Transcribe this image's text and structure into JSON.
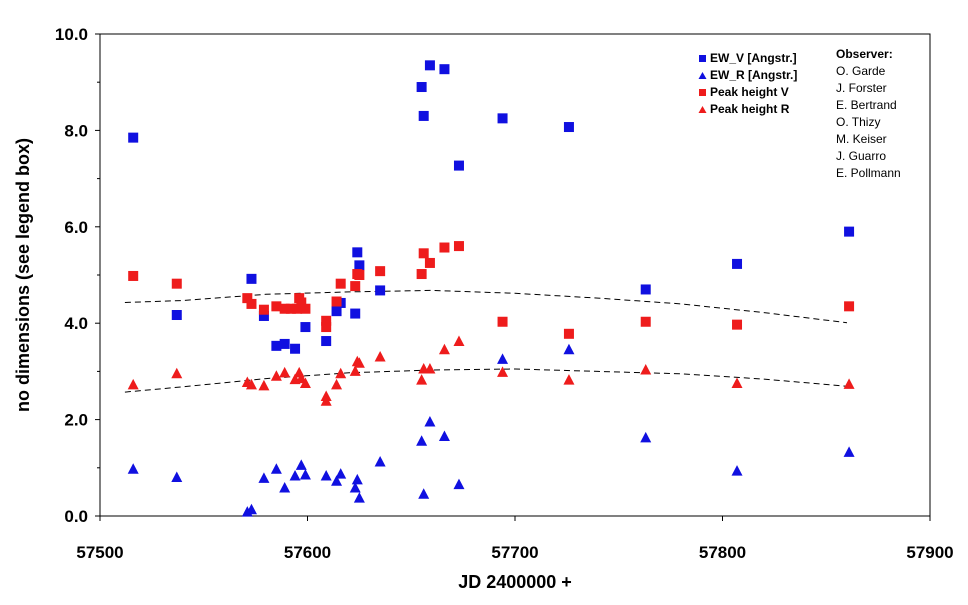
{
  "chart_data": {
    "type": "scatter",
    "xlabel": "JD 2400000 +",
    "ylabel": "no dimensions (see legend box)",
    "xlim": [
      57500,
      57900
    ],
    "ylim": [
      0,
      10
    ],
    "x_ticks": [
      57500,
      57600,
      57700,
      57800,
      57900
    ],
    "y_ticks": [
      0,
      2,
      4,
      6,
      8,
      10
    ],
    "x_tick_labels": [
      "57500",
      "57600",
      "57700",
      "57800",
      "57900"
    ],
    "y_tick_labels": [
      "0.0",
      "2.0",
      "4.0",
      "6.0",
      "8.0",
      "10.0"
    ],
    "grid": false,
    "legend_position": "top-right",
    "series": [
      {
        "name": "EW_V [Angstr.]",
        "marker": "square",
        "color": "#1010e0",
        "points": [
          [
            57516,
            7.85
          ],
          [
            57537,
            4.17
          ],
          [
            57573,
            4.92
          ],
          [
            57579,
            4.15
          ],
          [
            57585,
            3.53
          ],
          [
            57589,
            3.57
          ],
          [
            57594,
            3.47
          ],
          [
            57599,
            3.92
          ],
          [
            57609,
            3.63
          ],
          [
            57614,
            4.25
          ],
          [
            57616,
            4.42
          ],
          [
            57623,
            4.2
          ],
          [
            57624,
            5.47
          ],
          [
            57625,
            5.2
          ],
          [
            57635,
            4.68
          ],
          [
            57655,
            8.9
          ],
          [
            57656,
            8.3
          ],
          [
            57659,
            9.35
          ],
          [
            57666,
            9.27
          ],
          [
            57673,
            7.27
          ],
          [
            57694,
            8.25
          ],
          [
            57726,
            8.07
          ],
          [
            57763,
            4.7
          ],
          [
            57807,
            5.23
          ],
          [
            57861,
            5.9
          ]
        ]
      },
      {
        "name": "EW_R [Angstr.]",
        "marker": "triangle",
        "color": "#1010e0",
        "points": [
          [
            57516,
            0.97
          ],
          [
            57537,
            0.8
          ],
          [
            57571,
            0.08
          ],
          [
            57573,
            0.13
          ],
          [
            57579,
            0.78
          ],
          [
            57585,
            0.97
          ],
          [
            57589,
            0.58
          ],
          [
            57594,
            0.83
          ],
          [
            57597,
            1.05
          ],
          [
            57599,
            0.85
          ],
          [
            57609,
            0.83
          ],
          [
            57614,
            0.72
          ],
          [
            57616,
            0.87
          ],
          [
            57623,
            0.58
          ],
          [
            57624,
            0.75
          ],
          [
            57625,
            0.37
          ],
          [
            57635,
            1.12
          ],
          [
            57655,
            1.55
          ],
          [
            57656,
            0.45
          ],
          [
            57659,
            1.95
          ],
          [
            57666,
            1.65
          ],
          [
            57673,
            0.65
          ],
          [
            57694,
            3.25
          ],
          [
            57726,
            3.45
          ],
          [
            57763,
            1.62
          ],
          [
            57807,
            0.93
          ],
          [
            57861,
            1.32
          ]
        ]
      },
      {
        "name": "Peak height V",
        "marker": "square",
        "color": "#ee1c1c",
        "points": [
          [
            57516,
            4.98
          ],
          [
            57537,
            4.82
          ],
          [
            57571,
            4.52
          ],
          [
            57573,
            4.4
          ],
          [
            57579,
            4.28
          ],
          [
            57585,
            4.35
          ],
          [
            57589,
            4.3
          ],
          [
            57592,
            4.3
          ],
          [
            57595,
            4.3
          ],
          [
            57596,
            4.52
          ],
          [
            57597,
            4.43
          ],
          [
            57599,
            4.3
          ],
          [
            57609,
            4.05
          ],
          [
            57609,
            3.92
          ],
          [
            57614,
            4.45
          ],
          [
            57616,
            4.82
          ],
          [
            57623,
            4.77
          ],
          [
            57624,
            5.02
          ],
          [
            57625,
            5.0
          ],
          [
            57635,
            5.08
          ],
          [
            57655,
            5.02
          ],
          [
            57656,
            5.45
          ],
          [
            57659,
            5.25
          ],
          [
            57666,
            5.57
          ],
          [
            57673,
            5.6
          ],
          [
            57694,
            4.03
          ],
          [
            57726,
            3.78
          ],
          [
            57763,
            4.03
          ],
          [
            57807,
            3.97
          ],
          [
            57861,
            4.35
          ]
        ]
      },
      {
        "name": "Peak height R",
        "marker": "triangle",
        "color": "#ee1c1c",
        "points": [
          [
            57516,
            2.72
          ],
          [
            57537,
            2.95
          ],
          [
            57571,
            2.77
          ],
          [
            57573,
            2.72
          ],
          [
            57579,
            2.7
          ],
          [
            57585,
            2.9
          ],
          [
            57589,
            2.97
          ],
          [
            57594,
            2.83
          ],
          [
            57596,
            2.97
          ],
          [
            57597,
            2.85
          ],
          [
            57599,
            2.75
          ],
          [
            57609,
            2.48
          ],
          [
            57609,
            2.38
          ],
          [
            57614,
            2.72
          ],
          [
            57616,
            2.95
          ],
          [
            57623,
            3.0
          ],
          [
            57624,
            3.2
          ],
          [
            57625,
            3.17
          ],
          [
            57635,
            3.3
          ],
          [
            57655,
            2.82
          ],
          [
            57656,
            3.05
          ],
          [
            57659,
            3.05
          ],
          [
            57666,
            3.45
          ],
          [
            57673,
            3.62
          ],
          [
            57694,
            2.98
          ],
          [
            57726,
            2.82
          ],
          [
            57763,
            3.03
          ],
          [
            57807,
            2.75
          ],
          [
            57861,
            2.73
          ]
        ]
      }
    ],
    "trend_lines": [
      {
        "name": "Peak height V trend",
        "style": "dashed",
        "color": "#000000",
        "points": [
          [
            57512,
            4.43
          ],
          [
            57540,
            4.47
          ],
          [
            57580,
            4.6
          ],
          [
            57620,
            4.65
          ],
          [
            57660,
            4.68
          ],
          [
            57700,
            4.62
          ],
          [
            57740,
            4.52
          ],
          [
            57780,
            4.4
          ],
          [
            57820,
            4.22
          ],
          [
            57860,
            4.01
          ]
        ]
      },
      {
        "name": "Peak height R trend",
        "style": "dashed",
        "color": "#000000",
        "points": [
          [
            57512,
            2.57
          ],
          [
            57540,
            2.68
          ],
          [
            57580,
            2.85
          ],
          [
            57620,
            2.97
          ],
          [
            57660,
            3.03
          ],
          [
            57700,
            3.05
          ],
          [
            57740,
            3.0
          ],
          [
            57780,
            2.95
          ],
          [
            57820,
            2.84
          ],
          [
            57860,
            2.69
          ]
        ]
      }
    ],
    "annotation": {
      "title": "Observer:",
      "names": [
        "O. Garde",
        "J. Forster",
        "E. Bertrand",
        "O. Thizy",
        "M. Keiser",
        "J. Guarro",
        "E. Pollmann"
      ]
    }
  }
}
